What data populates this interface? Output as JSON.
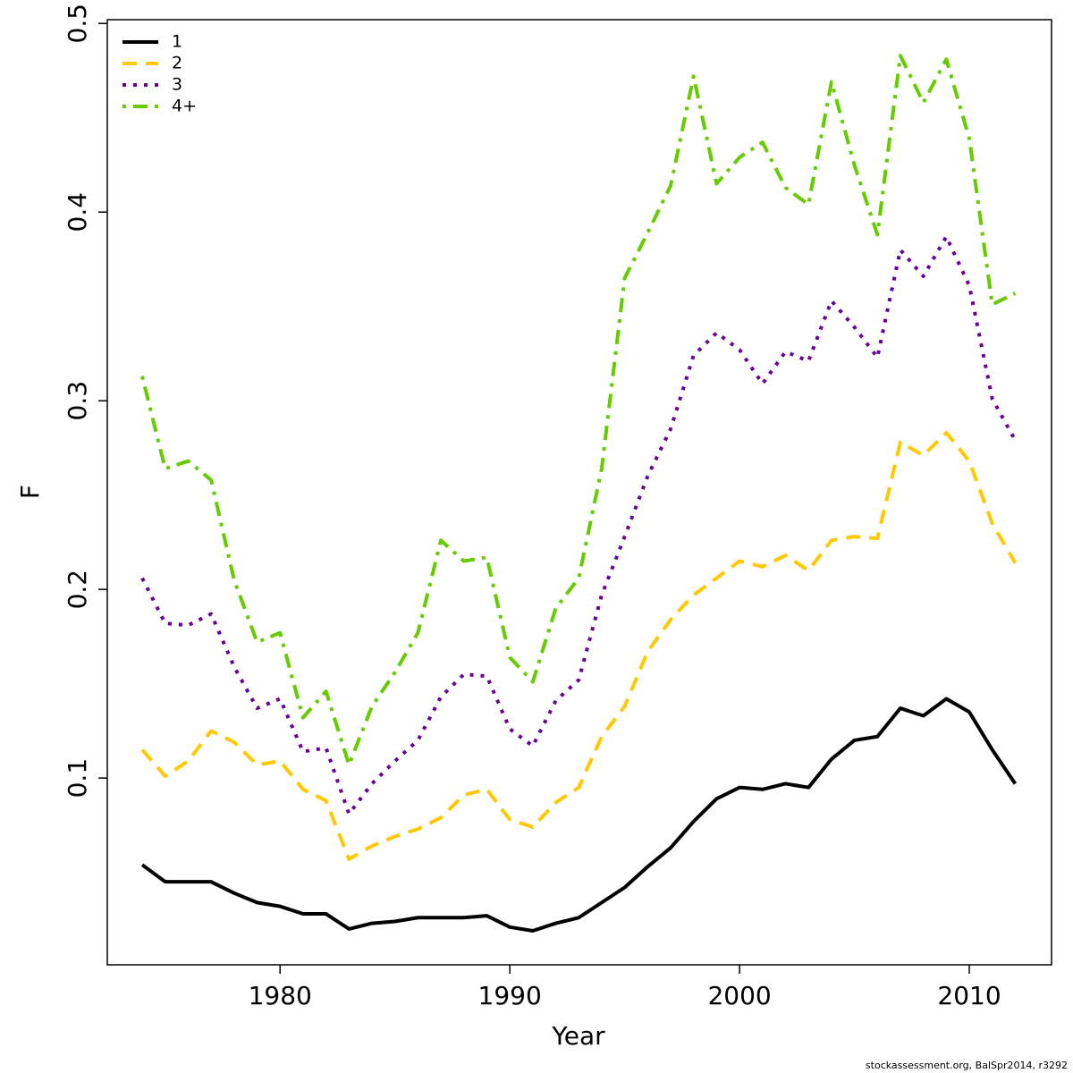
{
  "chart_data": {
    "type": "line",
    "x_label": "Year",
    "y_label": "F",
    "footnote": "stockassessment.org, BalSpr2014, r3292",
    "x": [
      1974,
      1975,
      1976,
      1977,
      1978,
      1979,
      1980,
      1981,
      1982,
      1983,
      1984,
      1985,
      1986,
      1987,
      1988,
      1989,
      1990,
      1991,
      1992,
      1993,
      1994,
      1995,
      1996,
      1997,
      1998,
      1999,
      2000,
      2001,
      2002,
      2003,
      2004,
      2005,
      2006,
      2007,
      2008,
      2009,
      2010,
      2011,
      2012
    ],
    "series": [
      {
        "name": "1",
        "color": "#000000",
        "line_style": "solid",
        "values": [
          0.054,
          0.045,
          0.045,
          0.045,
          0.039,
          0.034,
          0.032,
          0.028,
          0.028,
          0.02,
          0.023,
          0.024,
          0.026,
          0.026,
          0.026,
          0.027,
          0.021,
          0.019,
          0.023,
          0.026,
          0.034,
          0.042,
          0.053,
          0.063,
          0.077,
          0.089,
          0.095,
          0.094,
          0.097,
          0.095,
          0.11,
          0.12,
          0.122,
          0.137,
          0.133,
          0.142,
          0.135,
          0.115,
          0.097
        ]
      },
      {
        "name": "2",
        "color": "#ffc800",
        "line_style": "dashed",
        "values": [
          0.115,
          0.101,
          0.109,
          0.125,
          0.119,
          0.107,
          0.109,
          0.094,
          0.088,
          0.057,
          0.064,
          0.069,
          0.073,
          0.079,
          0.091,
          0.094,
          0.078,
          0.074,
          0.087,
          0.095,
          0.122,
          0.138,
          0.167,
          0.184,
          0.197,
          0.206,
          0.215,
          0.212,
          0.218,
          0.21,
          0.226,
          0.228,
          0.227,
          0.278,
          0.271,
          0.283,
          0.268,
          0.235,
          0.214
        ]
      },
      {
        "name": "3",
        "color": "#6a0096",
        "line_style": "dotted",
        "values": [
          0.206,
          0.182,
          0.181,
          0.187,
          0.159,
          0.137,
          0.142,
          0.114,
          0.116,
          0.081,
          0.097,
          0.109,
          0.12,
          0.143,
          0.155,
          0.154,
          0.126,
          0.117,
          0.141,
          0.152,
          0.197,
          0.228,
          0.26,
          0.285,
          0.324,
          0.336,
          0.327,
          0.309,
          0.326,
          0.321,
          0.353,
          0.339,
          0.323,
          0.38,
          0.366,
          0.387,
          0.361,
          0.301,
          0.279
        ]
      },
      {
        "name": "4+",
        "color": "#66cc00",
        "line_style": "dotdash",
        "values": [
          0.313,
          0.264,
          0.268,
          0.258,
          0.205,
          0.172,
          0.177,
          0.132,
          0.146,
          0.107,
          0.138,
          0.156,
          0.177,
          0.226,
          0.215,
          0.217,
          0.164,
          0.151,
          0.19,
          0.206,
          0.264,
          0.365,
          0.389,
          0.414,
          0.472,
          0.415,
          0.429,
          0.437,
          0.413,
          0.404,
          0.469,
          0.425,
          0.388,
          0.483,
          0.458,
          0.481,
          0.439,
          0.351,
          0.357
        ]
      }
    ],
    "xlim": [
      1972.48,
      2013.58
    ],
    "xticks": [
      1980,
      1990,
      2000,
      2010
    ],
    "ylim": [
      0.001,
      0.502
    ],
    "yticks": [
      0.1,
      0.2,
      0.3,
      0.4,
      0.5
    ],
    "legend": "top-left",
    "grid": false
  }
}
